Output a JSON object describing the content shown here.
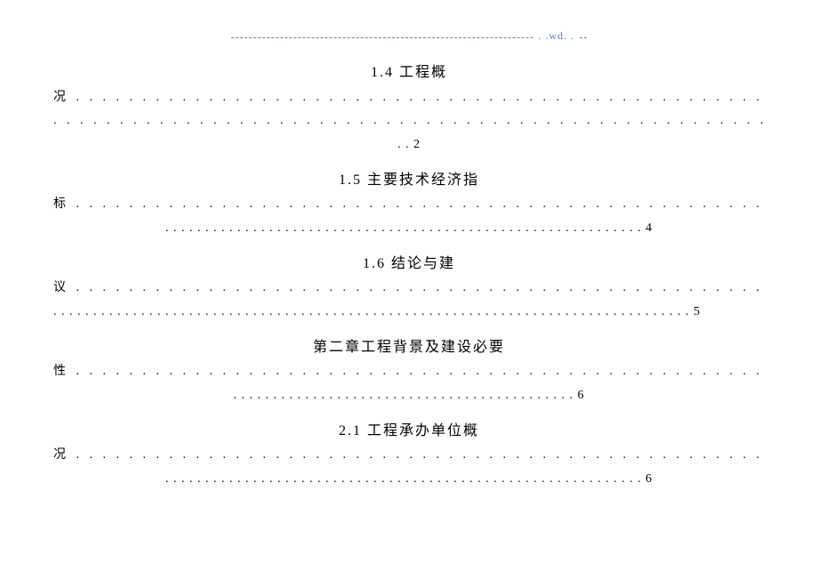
{
  "header": {
    "text": ". .wd. ."
  },
  "entries": [
    {
      "title_part1": "1.4 工程概",
      "dots1": "况 . . . . . . . . . . . . . . . . . . . . . . . . . . . . . . . . . . . . . . . . . . . . . . . . . . . . . . . . . . . . . . . . . . . . . . . . . . . . . . . . . . .",
      "dots2": " . . . . . . . . . . . . . . . . . . . . . . . . . . . . . . . . . . . . . . . . . . . . . . . . . . . . . . . . . . . . . . . . . . . . . . . . . . . . . . . . . . . .",
      "page_line": ". . 2"
    },
    {
      "title_part1": "1.5 主要技术经济指",
      "dots1": "标 . . . . . . . . . . . . . . . . . . . . . . . . . . . . . . . . . . . . . . . . . . . . . . . . . . . . . . . . . . . . . . . . . . . . . . . . . . . . . . . . . . .",
      "page_line": " . . . . . . . . . . . . . . . . . . . . . . . . . . . . . . . . . . . . . . . . . . . . . . . . . . . . . . . . . . . . 4"
    },
    {
      "title_part1": "1.6 结论与建",
      "dots1": "议 . . . . . . . . . . . . . . . . . . . . . . . . . . . . . . . . . . . . . . . . . . . . . . . . . . . . . . . . . . . . . . . . . . . . . . . . . . . . . . . . . . .",
      "page_line": " . . . . . . . . . . . . . . . . . . . . . . . . . . . . . . . . . . . . . . . . . . . . . . . . . . . . . . . . . . . . . . . . . . . . . . . . . . . . . . . . 5"
    },
    {
      "title_part1": "第二章工程背景及建设必要",
      "dots1": "性 . . . . . . . . . . . . . . . . . . . . . . . . . . . . . . . . . . . . . . . . . . . . . . . . . . . . . . . . . . . . . . . . . . . . . . . . . . . . . . . . . . .",
      "page_line": " . . . . . . . . . . . . . . . . . . . . . . . . . . . . . . . . . . . . . . . . . . . 6"
    },
    {
      "title_part1": "2.1 工程承办单位概",
      "dots1": "况 . . . . . . . . . . . . . . . . . . . . . . . . . . . . . . . . . . . . . . . . . . . . . . . . . . . . . . . . . . . . . . . . . . . . . . . . . . . . . . . . . . .",
      "page_line": " . . . . . . . . . . . . . . . . . . . . . . . . . . . . . . . . . . . . . . . . . . . . . . . . . . . . . . . . . . . . 6"
    }
  ]
}
